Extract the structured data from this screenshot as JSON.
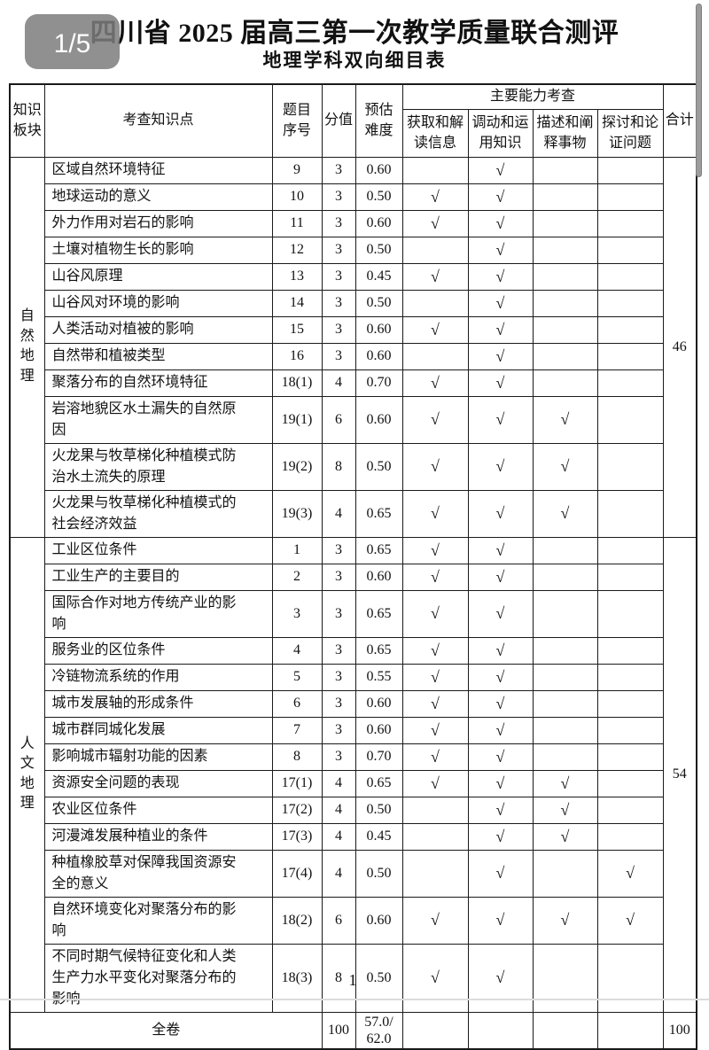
{
  "page": {
    "badge": "1/5",
    "title": "四川省 2025 届高三第一次教学质量联合测评",
    "subtitle": "地理学科双向细目表",
    "page_number": "1"
  },
  "checkmark": "√",
  "table": {
    "headers": {
      "knowledge_block": "知识\n板块",
      "knowledge_point": "考查知识点",
      "question_no": "题目\n序号",
      "points": "分值",
      "difficulty": "预估\n难度",
      "ability_group": "主要能力考查",
      "abilities": [
        "获取和解\n读信息",
        "调动和运\n用知识",
        "描述和阐\n释事物",
        "探讨和论\n证问题"
      ],
      "total": "合计"
    },
    "sections": [
      {
        "block": "自然地理",
        "total": "46",
        "rows": [
          {
            "point": "区域自然环境特征",
            "no": "9",
            "points": "3",
            "difficulty": "0.60",
            "marks": [
              0,
              1,
              0,
              0
            ]
          },
          {
            "point": "地球运动的意义",
            "no": "10",
            "points": "3",
            "difficulty": "0.50",
            "marks": [
              1,
              1,
              0,
              0
            ]
          },
          {
            "point": "外力作用对岩石的影响",
            "no": "11",
            "points": "3",
            "difficulty": "0.60",
            "marks": [
              1,
              1,
              0,
              0
            ]
          },
          {
            "point": "土壤对植物生长的影响",
            "no": "12",
            "points": "3",
            "difficulty": "0.50",
            "marks": [
              0,
              1,
              0,
              0
            ]
          },
          {
            "point": "山谷风原理",
            "no": "13",
            "points": "3",
            "difficulty": "0.45",
            "marks": [
              1,
              1,
              0,
              0
            ]
          },
          {
            "point": "山谷风对环境的影响",
            "no": "14",
            "points": "3",
            "difficulty": "0.50",
            "marks": [
              0,
              1,
              0,
              0
            ]
          },
          {
            "point": "人类活动对植被的影响",
            "no": "15",
            "points": "3",
            "difficulty": "0.60",
            "marks": [
              1,
              1,
              0,
              0
            ]
          },
          {
            "point": "自然带和植被类型",
            "no": "16",
            "points": "3",
            "difficulty": "0.60",
            "marks": [
              0,
              1,
              0,
              0
            ]
          },
          {
            "point": "聚落分布的自然环境特征",
            "no": "18(1)",
            "points": "4",
            "difficulty": "0.70",
            "marks": [
              1,
              1,
              0,
              0
            ]
          },
          {
            "point": "岩溶地貌区水土漏失的自然原因",
            "no": "19(1)",
            "points": "6",
            "difficulty": "0.60",
            "marks": [
              1,
              1,
              1,
              0
            ]
          },
          {
            "point": "火龙果与牧草梯化种植模式防治水土流失的原理",
            "no": "19(2)",
            "points": "8",
            "difficulty": "0.50",
            "marks": [
              1,
              1,
              1,
              0
            ]
          },
          {
            "point": "火龙果与牧草梯化种植模式的社会经济效益",
            "no": "19(3)",
            "points": "4",
            "difficulty": "0.65",
            "marks": [
              1,
              1,
              1,
              0
            ]
          }
        ]
      },
      {
        "block": "人文地理",
        "total": "54",
        "rows": [
          {
            "point": "工业区位条件",
            "no": "1",
            "points": "3",
            "difficulty": "0.65",
            "marks": [
              1,
              1,
              0,
              0
            ]
          },
          {
            "point": "工业生产的主要目的",
            "no": "2",
            "points": "3",
            "difficulty": "0.60",
            "marks": [
              1,
              1,
              0,
              0
            ]
          },
          {
            "point": "国际合作对地方传统产业的影响",
            "no": "3",
            "points": "3",
            "difficulty": "0.65",
            "marks": [
              1,
              1,
              0,
              0
            ]
          },
          {
            "point": "服务业的区位条件",
            "no": "4",
            "points": "3",
            "difficulty": "0.65",
            "marks": [
              1,
              1,
              0,
              0
            ]
          },
          {
            "point": "冷链物流系统的作用",
            "no": "5",
            "points": "3",
            "difficulty": "0.55",
            "marks": [
              1,
              1,
              0,
              0
            ]
          },
          {
            "point": "城市发展轴的形成条件",
            "no": "6",
            "points": "3",
            "difficulty": "0.60",
            "marks": [
              1,
              1,
              0,
              0
            ]
          },
          {
            "point": "城市群同城化发展",
            "no": "7",
            "points": "3",
            "difficulty": "0.60",
            "marks": [
              1,
              1,
              0,
              0
            ]
          },
          {
            "point": "影响城市辐射功能的因素",
            "no": "8",
            "points": "3",
            "difficulty": "0.70",
            "marks": [
              1,
              1,
              0,
              0
            ]
          },
          {
            "point": "资源安全问题的表现",
            "no": "17(1)",
            "points": "4",
            "difficulty": "0.65",
            "marks": [
              1,
              1,
              1,
              0
            ]
          },
          {
            "point": "农业区位条件",
            "no": "17(2)",
            "points": "4",
            "difficulty": "0.50",
            "marks": [
              0,
              1,
              1,
              0
            ]
          },
          {
            "point": "河漫滩发展种植业的条件",
            "no": "17(3)",
            "points": "4",
            "difficulty": "0.45",
            "marks": [
              0,
              1,
              1,
              0
            ]
          },
          {
            "point": "种植橡胶草对保障我国资源安全的意义",
            "no": "17(4)",
            "points": "4",
            "difficulty": "0.50",
            "marks": [
              0,
              1,
              0,
              1
            ]
          },
          {
            "point": "自然环境变化对聚落分布的影响",
            "no": "18(2)",
            "points": "6",
            "difficulty": "0.60",
            "marks": [
              1,
              1,
              1,
              1
            ]
          },
          {
            "point": "不同时期气候特征变化和人类生产力水平变化对聚落分布的影响",
            "no": "18(3)",
            "points": "8",
            "difficulty": "0.50",
            "marks": [
              1,
              1,
              0,
              0
            ]
          }
        ]
      }
    ],
    "footer": {
      "label": "全卷",
      "points": "100",
      "difficulty": "57.0/\n62.0",
      "total": "100"
    }
  }
}
